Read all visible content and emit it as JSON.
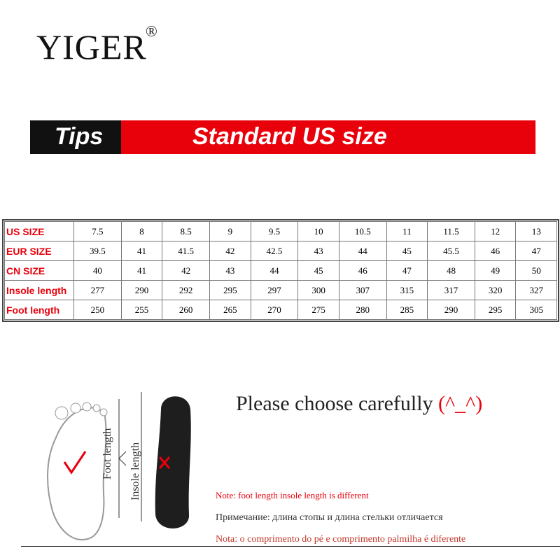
{
  "header": {
    "brand": "YIGER",
    "mark": "®"
  },
  "banner": {
    "tag": "Tips",
    "title": "Standard US size"
  },
  "table": {
    "rows": [
      [
        "US SIZE",
        "7.5",
        "8",
        "8.5",
        "9",
        "9.5",
        "10",
        "10.5",
        "11",
        "11.5",
        "12",
        "13"
      ],
      [
        "EUR SIZE",
        "39.5",
        "41",
        "41.5",
        "42",
        "42.5",
        "43",
        "44",
        "45",
        "45.5",
        "46",
        "47"
      ],
      [
        "CN SIZE",
        "40",
        "41",
        "42",
        "43",
        "44",
        "45",
        "46",
        "47",
        "48",
        "49",
        "50"
      ],
      [
        "Insole length",
        "277",
        "290",
        "292",
        "295",
        "297",
        "300",
        "307",
        "315",
        "317",
        "320",
        "327"
      ],
      [
        "Foot length",
        "250",
        "255",
        "260",
        "265",
        "270",
        "275",
        "280",
        "285",
        "290",
        "295",
        "305"
      ]
    ]
  },
  "illustration": {
    "foot_label": "Foot length",
    "insole_label": "Insole length"
  },
  "heading": {
    "text": "Please choose carefully",
    "emoticon": "(^_^)"
  },
  "notes": [
    "Note: foot length  insole length is different",
    "Примечание: длина стопы и длина стельки отличается",
    "Nota: o comprimento do pé e comprimento palmilha é diferente"
  ]
}
